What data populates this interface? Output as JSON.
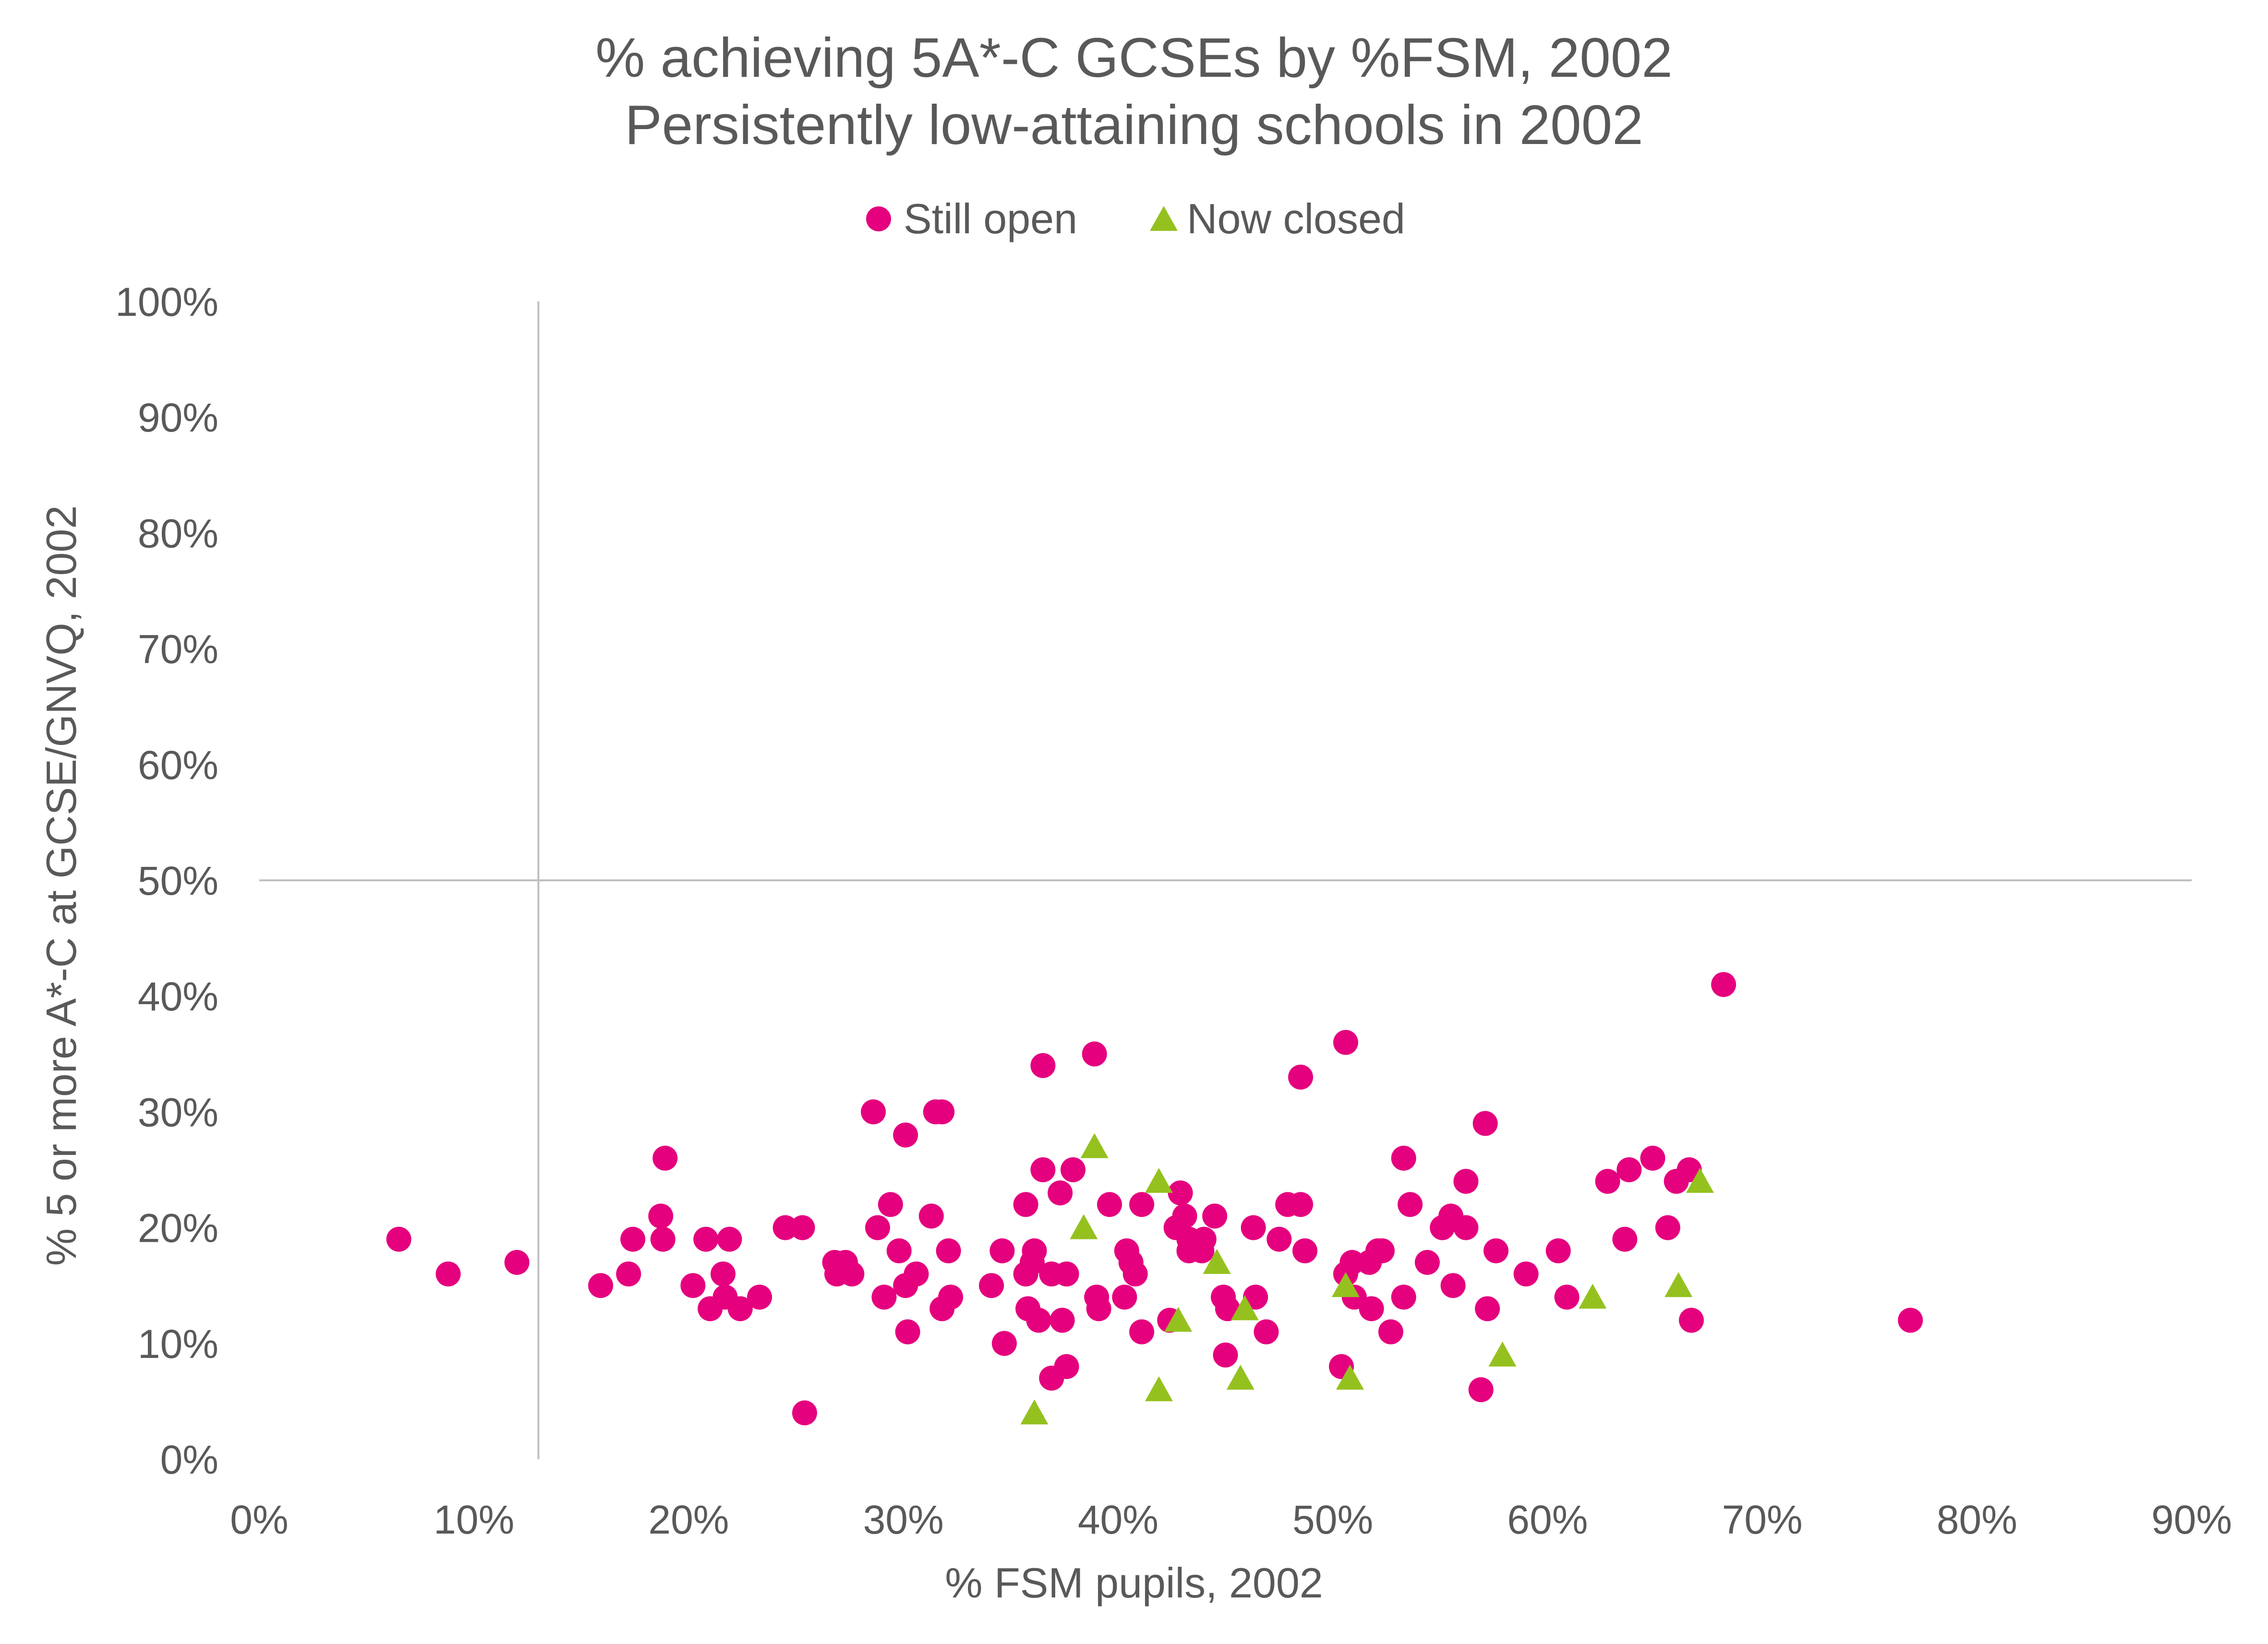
{
  "colors": {
    "still_open": "#E5007E",
    "now_closed": "#95C11F",
    "text": "#595959",
    "axis": "#BFBFBF"
  },
  "chart_data": {
    "type": "scatter",
    "title": "% achieving 5A*-C GCSEs by %FSM, 2002",
    "subtitle": "Persistently low-attaining schools in 2002",
    "xlabel": "% FSM pupils, 2002",
    "ylabel": "% 5 or more A*-C at GCSE/GNVQ, 2002",
    "xlim": [
      0,
      90
    ],
    "ylim": [
      0,
      100
    ],
    "x_ticks": [
      "0%",
      "10%",
      "20%",
      "30%",
      "40%",
      "50%",
      "60%",
      "70%",
      "80%",
      "90%"
    ],
    "y_ticks": [
      "0%",
      "10%",
      "20%",
      "30%",
      "40%",
      "50%",
      "60%",
      "70%",
      "80%",
      "90%",
      "100%"
    ],
    "x_tick_values": [
      0,
      10,
      20,
      30,
      40,
      50,
      60,
      70,
      80,
      90
    ],
    "y_tick_values": [
      0,
      10,
      20,
      30,
      40,
      50,
      60,
      70,
      80,
      90,
      100
    ],
    "reference_lines": {
      "vertical_x": 13,
      "horizontal_y": 50
    },
    "legend_position": "top-center",
    "series": [
      {
        "name": "Still open",
        "marker": "circle",
        "points": [
          [
            6.5,
            19
          ],
          [
            8.8,
            16
          ],
          [
            12,
            17
          ],
          [
            15.9,
            15
          ],
          [
            17.2,
            16
          ],
          [
            17.4,
            19
          ],
          [
            18.7,
            21
          ],
          [
            18.8,
            19
          ],
          [
            18.9,
            26
          ],
          [
            20.2,
            15
          ],
          [
            20.8,
            19
          ],
          [
            21,
            13
          ],
          [
            21.6,
            16
          ],
          [
            21.7,
            14
          ],
          [
            21.9,
            19
          ],
          [
            22.4,
            13
          ],
          [
            23.3,
            14
          ],
          [
            24.5,
            20
          ],
          [
            25.3,
            20
          ],
          [
            25.4,
            4
          ],
          [
            26.8,
            17
          ],
          [
            26.9,
            16
          ],
          [
            27.3,
            17
          ],
          [
            27.6,
            16
          ],
          [
            28.6,
            30
          ],
          [
            28.8,
            20
          ],
          [
            29.1,
            14
          ],
          [
            29.4,
            22
          ],
          [
            29.8,
            18
          ],
          [
            30.1,
            28
          ],
          [
            30.1,
            15
          ],
          [
            30.2,
            11
          ],
          [
            30.6,
            16
          ],
          [
            31.3,
            21
          ],
          [
            31.5,
            30
          ],
          [
            31.8,
            30
          ],
          [
            31.8,
            13
          ],
          [
            32.1,
            18
          ],
          [
            32.2,
            14
          ],
          [
            34.1,
            15
          ],
          [
            34.6,
            18
          ],
          [
            34.7,
            10
          ],
          [
            35.7,
            22
          ],
          [
            35.7,
            16
          ],
          [
            35.8,
            13
          ],
          [
            36,
            17
          ],
          [
            36.1,
            18
          ],
          [
            36.3,
            12
          ],
          [
            36.5,
            34
          ],
          [
            36.5,
            25
          ],
          [
            36.9,
            7
          ],
          [
            36.9,
            16
          ],
          [
            37.3,
            23
          ],
          [
            37.4,
            12
          ],
          [
            37.6,
            8
          ],
          [
            37.6,
            16
          ],
          [
            37.9,
            25
          ],
          [
            38.9,
            35
          ],
          [
            39,
            14
          ],
          [
            39.1,
            13
          ],
          [
            39.6,
            22
          ],
          [
            40.3,
            14
          ],
          [
            40.4,
            18
          ],
          [
            40.6,
            17
          ],
          [
            40.8,
            16
          ],
          [
            41.1,
            22
          ],
          [
            41.1,
            11
          ],
          [
            42.4,
            12
          ],
          [
            42.7,
            20
          ],
          [
            42.9,
            23
          ],
          [
            43.1,
            21
          ],
          [
            43.3,
            19
          ],
          [
            43.3,
            18
          ],
          [
            43.9,
            18
          ],
          [
            44,
            19
          ],
          [
            44.5,
            21
          ],
          [
            44.9,
            14
          ],
          [
            45,
            9
          ],
          [
            45.1,
            13
          ],
          [
            46.3,
            20
          ],
          [
            46.4,
            14
          ],
          [
            46.9,
            11
          ],
          [
            47.5,
            19
          ],
          [
            47.9,
            22
          ],
          [
            48.5,
            33
          ],
          [
            48.5,
            22
          ],
          [
            48.7,
            18
          ],
          [
            50.4,
            8
          ],
          [
            50.6,
            36
          ],
          [
            50.6,
            16
          ],
          [
            50.9,
            17
          ],
          [
            51,
            14
          ],
          [
            51.7,
            17
          ],
          [
            51.8,
            13
          ],
          [
            52.1,
            18
          ],
          [
            52.3,
            18
          ],
          [
            52.7,
            11
          ],
          [
            53.3,
            26
          ],
          [
            53.3,
            14
          ],
          [
            53.6,
            22
          ],
          [
            54.4,
            17
          ],
          [
            55.1,
            20
          ],
          [
            55.5,
            21
          ],
          [
            55.6,
            15
          ],
          [
            56.2,
            24
          ],
          [
            56.2,
            20
          ],
          [
            56.9,
            6
          ],
          [
            57.1,
            29
          ],
          [
            57.2,
            13
          ],
          [
            57.6,
            18
          ],
          [
            59,
            16
          ],
          [
            60.5,
            18
          ],
          [
            60.9,
            14
          ],
          [
            62.8,
            24
          ],
          [
            63.6,
            19
          ],
          [
            63.8,
            25
          ],
          [
            64.9,
            26
          ],
          [
            65.6,
            20
          ],
          [
            66,
            24
          ],
          [
            66.6,
            25
          ],
          [
            66.7,
            12
          ],
          [
            68.2,
            41
          ],
          [
            76.9,
            12
          ]
        ]
      },
      {
        "name": "Now closed",
        "marker": "triangle",
        "points": [
          [
            36.1,
            4
          ],
          [
            38.4,
            20
          ],
          [
            38.9,
            27
          ],
          [
            41.9,
            6
          ],
          [
            41.9,
            24
          ],
          [
            42.8,
            12
          ],
          [
            44.6,
            17
          ],
          [
            45.7,
            7
          ],
          [
            45.9,
            13
          ],
          [
            50.6,
            15
          ],
          [
            50.8,
            7
          ],
          [
            57.9,
            9
          ],
          [
            62.1,
            14
          ],
          [
            66.1,
            15
          ],
          [
            67.1,
            24
          ]
        ]
      }
    ]
  }
}
